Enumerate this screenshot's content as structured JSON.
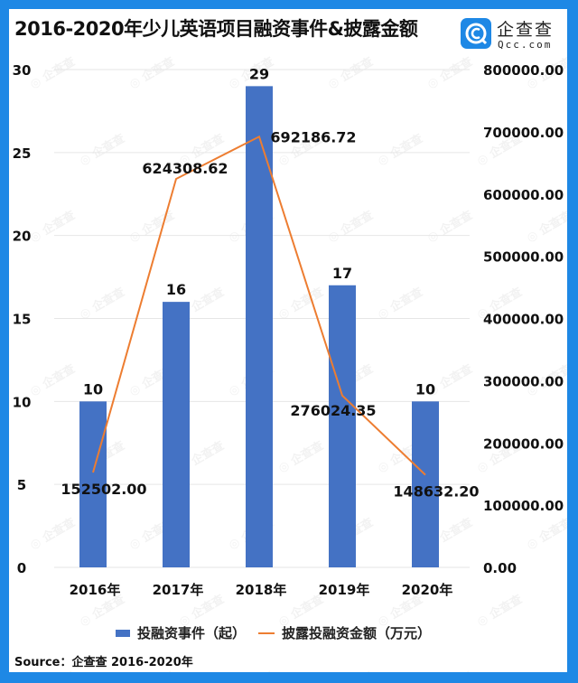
{
  "header": {
    "title": "2016-2020年少儿英语项目融资事件&披露金额",
    "logo_cn": "企查查",
    "logo_en": "Qcc.com"
  },
  "legend": {
    "bar": "投融资事件（起）",
    "line": "披露投融资金额（万元）"
  },
  "source": "Source：企查查  2016-2020年",
  "watermark": "企查查",
  "colors": {
    "frame": "#1e88e5",
    "bar": "#4472c4",
    "line": "#ed7d31",
    "grid": "#e6e6e6"
  },
  "chart_data": {
    "type": "bar+line",
    "title": "2016-2020年少儿英语项目融资事件&披露金额",
    "categories": [
      "2016年",
      "2017年",
      "2018年",
      "2019年",
      "2020年"
    ],
    "series": [
      {
        "name": "投融资事件（起）",
        "type": "bar",
        "axis": "left",
        "values": [
          10,
          16,
          29,
          17,
          10
        ]
      },
      {
        "name": "披露投融资金额（万元）",
        "type": "line",
        "axis": "right",
        "values": [
          152502.0,
          624308.62,
          692186.72,
          276024.35,
          148632.2
        ]
      }
    ],
    "value_labels_bar": [
      "10",
      "16",
      "29",
      "17",
      "10"
    ],
    "value_labels_line": [
      "152502.00",
      "624308.62",
      "692186.72",
      "276024.35",
      "148632.20"
    ],
    "y_left": {
      "min": 0,
      "max": 30,
      "ticks": [
        "0",
        "5",
        "10",
        "15",
        "20",
        "25",
        "30"
      ]
    },
    "y_right": {
      "min": 0,
      "max": 800000,
      "ticks": [
        "0.00",
        "100000.00",
        "200000.00",
        "300000.00",
        "400000.00",
        "500000.00",
        "600000.00",
        "700000.00",
        "800000.00"
      ]
    },
    "xlabel": "",
    "ylabel": "",
    "grid": true,
    "legend_position": "bottom"
  }
}
